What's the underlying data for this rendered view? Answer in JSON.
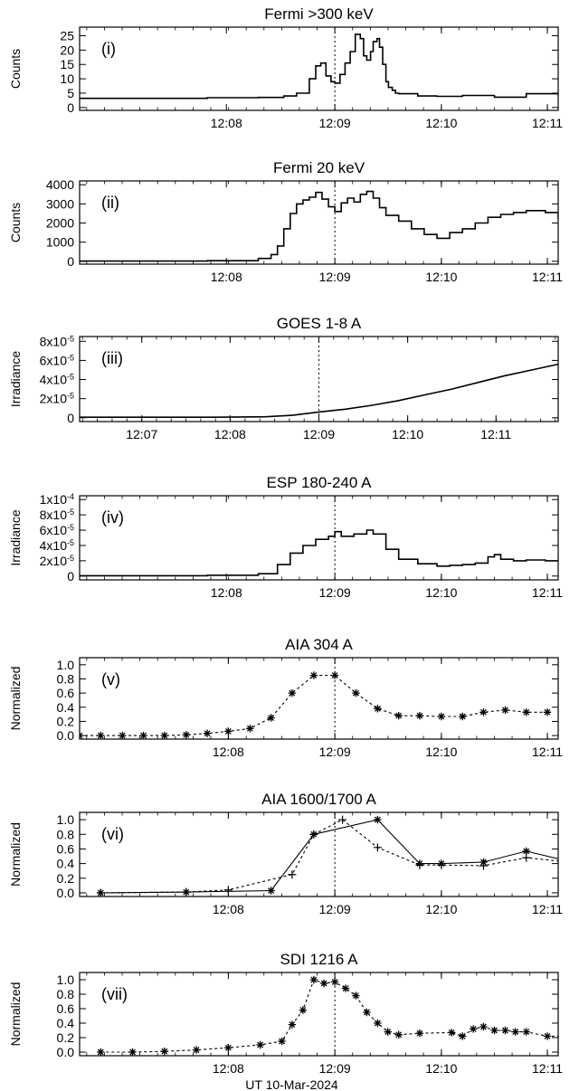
{
  "chart_data": [
    {
      "type": "line",
      "title": "Fermi >300 keV",
      "panel_label": "(i)",
      "ylabel": "Counts",
      "xlabel": "",
      "xlim": [
        12.11,
        12.185
      ],
      "ylim": [
        -1,
        28
      ],
      "xticks": [
        12.133,
        12.15,
        12.1667,
        12.1833
      ],
      "xtick_labels": [
        "12:08",
        "12:09",
        "12:10",
        "12:11"
      ],
      "yticks": [
        0,
        5,
        10,
        15,
        20,
        25
      ],
      "ytick_labels": [
        "0",
        "5",
        "10",
        "15",
        "20",
        "25"
      ],
      "vline_x": 12.15,
      "series": [
        {
          "style": "step",
          "marker": "none",
          "x": [
            12.11,
            12.12,
            12.13,
            12.138,
            12.142,
            12.144,
            12.146,
            12.147,
            12.1478,
            12.1486,
            12.1494,
            12.15,
            12.1508,
            12.1516,
            12.1524,
            12.1532,
            12.154,
            12.1545,
            12.155,
            12.1556,
            12.156,
            12.1566,
            12.157,
            12.1575,
            12.158,
            12.1584,
            12.159,
            12.1595,
            12.16,
            12.163,
            12.166,
            12.17,
            12.175,
            12.18,
            12.185
          ],
          "y": [
            3.2,
            3.2,
            3.4,
            3.5,
            4.0,
            5.0,
            10.0,
            14.5,
            15.5,
            11.0,
            9.0,
            8.5,
            11.5,
            15.5,
            19.5,
            25.5,
            24.0,
            18.0,
            16.5,
            19.5,
            23.0,
            24.0,
            21.0,
            15.0,
            9.0,
            7.0,
            6.0,
            5.0,
            4.8,
            4.0,
            3.9,
            4.2,
            3.6,
            4.8,
            4.2
          ]
        }
      ]
    },
    {
      "type": "line",
      "title": "Fermi 20 keV",
      "panel_label": "(ii)",
      "ylabel": "Counts",
      "xlabel": "",
      "xlim": [
        12.11,
        12.185
      ],
      "ylim": [
        -150,
        4200
      ],
      "xticks": [
        12.133,
        12.15,
        12.1667,
        12.1833
      ],
      "xtick_labels": [
        "12:08",
        "12:09",
        "12:10",
        "12:11"
      ],
      "yticks": [
        0,
        1000,
        2000,
        3000,
        4000
      ],
      "ytick_labels": [
        "0",
        "1000",
        "2000",
        "3000",
        "4000"
      ],
      "vline_x": 12.15,
      "series": [
        {
          "style": "step",
          "marker": "none",
          "x": [
            12.11,
            12.13,
            12.138,
            12.14,
            12.141,
            12.142,
            12.143,
            12.144,
            12.145,
            12.146,
            12.147,
            12.148,
            12.149,
            12.15,
            12.151,
            12.152,
            12.153,
            12.154,
            12.155,
            12.156,
            12.157,
            12.158,
            12.16,
            12.162,
            12.164,
            12.166,
            12.168,
            12.17,
            12.172,
            12.174,
            12.176,
            12.178,
            12.18,
            12.183,
            12.185
          ],
          "y": [
            10,
            30,
            150,
            350,
            800,
            1700,
            2500,
            3000,
            3200,
            3350,
            3600,
            3250,
            2850,
            2600,
            3050,
            3300,
            3100,
            3500,
            3650,
            3300,
            2800,
            2400,
            2100,
            1700,
            1400,
            1200,
            1500,
            1700,
            2000,
            2300,
            2450,
            2550,
            2650,
            2550,
            2200
          ]
        }
      ]
    },
    {
      "type": "line",
      "title": "GOES 1-8 A",
      "panel_label": "(iii)",
      "ylabel": "Irradiance",
      "xlabel": "",
      "xlim": [
        12.105,
        12.195
      ],
      "ylim": [
        -4e-06,
        8.5e-05
      ],
      "xticks": [
        12.1167,
        12.1333,
        12.15,
        12.1667,
        12.1833
      ],
      "xtick_labels": [
        "12:07",
        "12:08",
        "12:09",
        "12:10",
        "12:11"
      ],
      "yticks": [
        0,
        2e-05,
        4e-05,
        6e-05,
        8e-05
      ],
      "ytick_labels": [
        "0",
        "2x10-5",
        "4x10-5",
        "6x10-5",
        "8x10-5"
      ],
      "vline_x": 12.15,
      "series": [
        {
          "style": "line",
          "marker": "none",
          "x": [
            12.105,
            12.13,
            12.14,
            12.145,
            12.15,
            12.155,
            12.16,
            12.165,
            12.17,
            12.175,
            12.18,
            12.185,
            12.19,
            12.195
          ],
          "y": [
            5e-07,
            5e-07,
            1e-06,
            2.5e-06,
            6e-06,
            9e-06,
            1.3e-05,
            1.8e-05,
            2.4e-05,
            3e-05,
            3.7e-05,
            4.4e-05,
            5e-05,
            5.6e-05
          ]
        }
      ]
    },
    {
      "type": "line",
      "title": "ESP 180-240 A",
      "panel_label": "(iv)",
      "ylabel": "Irradiance",
      "xlabel": "",
      "xlim": [
        12.11,
        12.185
      ],
      "ylim": [
        -5e-06,
        0.000105
      ],
      "xticks": [
        12.133,
        12.15,
        12.1667,
        12.1833
      ],
      "xtick_labels": [
        "12:08",
        "12:09",
        "12:10",
        "12:11"
      ],
      "yticks": [
        0,
        2e-05,
        4e-05,
        6e-05,
        8e-05,
        0.0001
      ],
      "ytick_labels": [
        "0",
        "2x10-5",
        "4x10-5",
        "6x10-5",
        "8x10-5",
        "1x10-4"
      ],
      "vline_x": 12.15,
      "series": [
        {
          "style": "step",
          "marker": "none",
          "x": [
            12.11,
            12.13,
            12.138,
            12.141,
            12.143,
            12.145,
            12.147,
            12.149,
            12.15,
            12.151,
            12.153,
            12.155,
            12.156,
            12.158,
            12.16,
            12.163,
            12.166,
            12.168,
            12.17,
            12.172,
            12.174,
            12.175,
            12.176,
            12.178,
            12.18,
            12.183,
            12.185
          ],
          "y": [
            5e-07,
            1e-06,
            3e-06,
            1.5e-05,
            3e-05,
            4e-05,
            4.8e-05,
            5.2e-05,
            5.8e-05,
            5.2e-05,
            5.5e-05,
            6e-05,
            5.5e-05,
            3.5e-05,
            2.2e-05,
            1.6e-05,
            1.3e-05,
            1.4e-05,
            1.5e-05,
            1.7e-05,
            2.5e-05,
            2.8e-05,
            2.2e-05,
            2e-05,
            2.1e-05,
            2e-05,
            2e-05
          ]
        }
      ]
    },
    {
      "type": "scatter",
      "title": "AIA 304 A",
      "panel_label": "(v)",
      "ylabel": "Normalized",
      "xlabel": "",
      "xlim": [
        12.11,
        12.185
      ],
      "ylim": [
        -0.05,
        1.1
      ],
      "xticks": [
        12.1333,
        12.15,
        12.1667,
        12.1833
      ],
      "xtick_labels": [
        "12:08",
        "12:09",
        "12:10",
        "12:11"
      ],
      "yticks": [
        0,
        0.2,
        0.4,
        0.6,
        0.8,
        1.0
      ],
      "ytick_labels": [
        "0.0",
        "0.2",
        "0.4",
        "0.6",
        "0.8",
        "1.0"
      ],
      "vline_x": 12.15,
      "series": [
        {
          "style": "dashed",
          "marker": "asterisk",
          "x": [
            12.11,
            12.1133,
            12.1167,
            12.12,
            12.1233,
            12.1267,
            12.13,
            12.1333,
            12.1367,
            12.14,
            12.1433,
            12.1467,
            12.15,
            12.1533,
            12.1567,
            12.16,
            12.1633,
            12.1667,
            12.17,
            12.1733,
            12.1767,
            12.18,
            12.1833
          ],
          "y": [
            0,
            0,
            0,
            0,
            0,
            0.01,
            0.03,
            0.06,
            0.1,
            0.25,
            0.6,
            0.85,
            0.85,
            0.6,
            0.38,
            0.28,
            0.28,
            0.27,
            0.27,
            0.33,
            0.36,
            0.33,
            0.33
          ]
        }
      ]
    },
    {
      "type": "line",
      "title": "AIA 1600/1700 A",
      "panel_label": "(vi)",
      "ylabel": "Normalized",
      "xlabel": "",
      "xlim": [
        12.11,
        12.185
      ],
      "ylim": [
        -0.05,
        1.1
      ],
      "xticks": [
        12.1333,
        12.15,
        12.1667,
        12.1833
      ],
      "xtick_labels": [
        "12:08",
        "12:09",
        "12:10",
        "12:11"
      ],
      "yticks": [
        0,
        0.2,
        0.4,
        0.6,
        0.8,
        1.0
      ],
      "ytick_labels": [
        "0.0",
        "0.2",
        "0.4",
        "0.6",
        "0.8",
        "1.0"
      ],
      "vline_x": 12.15,
      "series": [
        {
          "style": "solid",
          "marker": "asterisk",
          "x": [
            12.1133,
            12.1267,
            12.14,
            12.1467,
            12.1567,
            12.1633,
            12.1667,
            12.1733,
            12.18,
            12.1867
          ],
          "y": [
            0,
            0.01,
            0.03,
            0.8,
            1.0,
            0.4,
            0.4,
            0.42,
            0.57,
            0.43
          ]
        },
        {
          "style": "dashed",
          "marker": "plus",
          "x": [
            12.1133,
            12.1267,
            12.1333,
            12.1433,
            12.1467,
            12.1512,
            12.1567,
            12.1633,
            12.1667,
            12.1733,
            12.18,
            12.1867
          ],
          "y": [
            0,
            0.01,
            0.04,
            0.25,
            0.8,
            1.0,
            0.62,
            0.38,
            0.38,
            0.37,
            0.48,
            0.42
          ]
        }
      ]
    },
    {
      "type": "scatter",
      "title": "SDI 1216 A",
      "panel_label": "(vii)",
      "ylabel": "Normalized",
      "xlabel": "UT 10-Mar-2024",
      "xlim": [
        12.11,
        12.185
      ],
      "ylim": [
        -0.05,
        1.1
      ],
      "xticks": [
        12.1333,
        12.15,
        12.1667,
        12.1833
      ],
      "xtick_labels": [
        "12:08",
        "12:09",
        "12:10",
        "12:11"
      ],
      "yticks": [
        0,
        0.2,
        0.4,
        0.6,
        0.8,
        1.0
      ],
      "ytick_labels": [
        "0.0",
        "0.2",
        "0.4",
        "0.6",
        "0.8",
        "1.0"
      ],
      "vline_x": 12.15,
      "series": [
        {
          "style": "dashed",
          "marker": "asterisk",
          "x": [
            12.1133,
            12.1183,
            12.1233,
            12.1283,
            12.1333,
            12.1383,
            12.1417,
            12.1433,
            12.145,
            12.1467,
            12.1483,
            12.15,
            12.1517,
            12.1533,
            12.155,
            12.1567,
            12.1583,
            12.16,
            12.1633,
            12.1683,
            12.17,
            12.1717,
            12.1733,
            12.175,
            12.1767,
            12.1783,
            12.18,
            12.1833,
            12.1867
          ],
          "y": [
            0,
            0,
            0.01,
            0.03,
            0.06,
            0.1,
            0.15,
            0.38,
            0.58,
            1.0,
            0.95,
            0.97,
            0.88,
            0.78,
            0.55,
            0.4,
            0.28,
            0.24,
            0.26,
            0.27,
            0.22,
            0.32,
            0.35,
            0.3,
            0.3,
            0.28,
            0.28,
            0.22,
            0.22
          ]
        }
      ]
    }
  ]
}
